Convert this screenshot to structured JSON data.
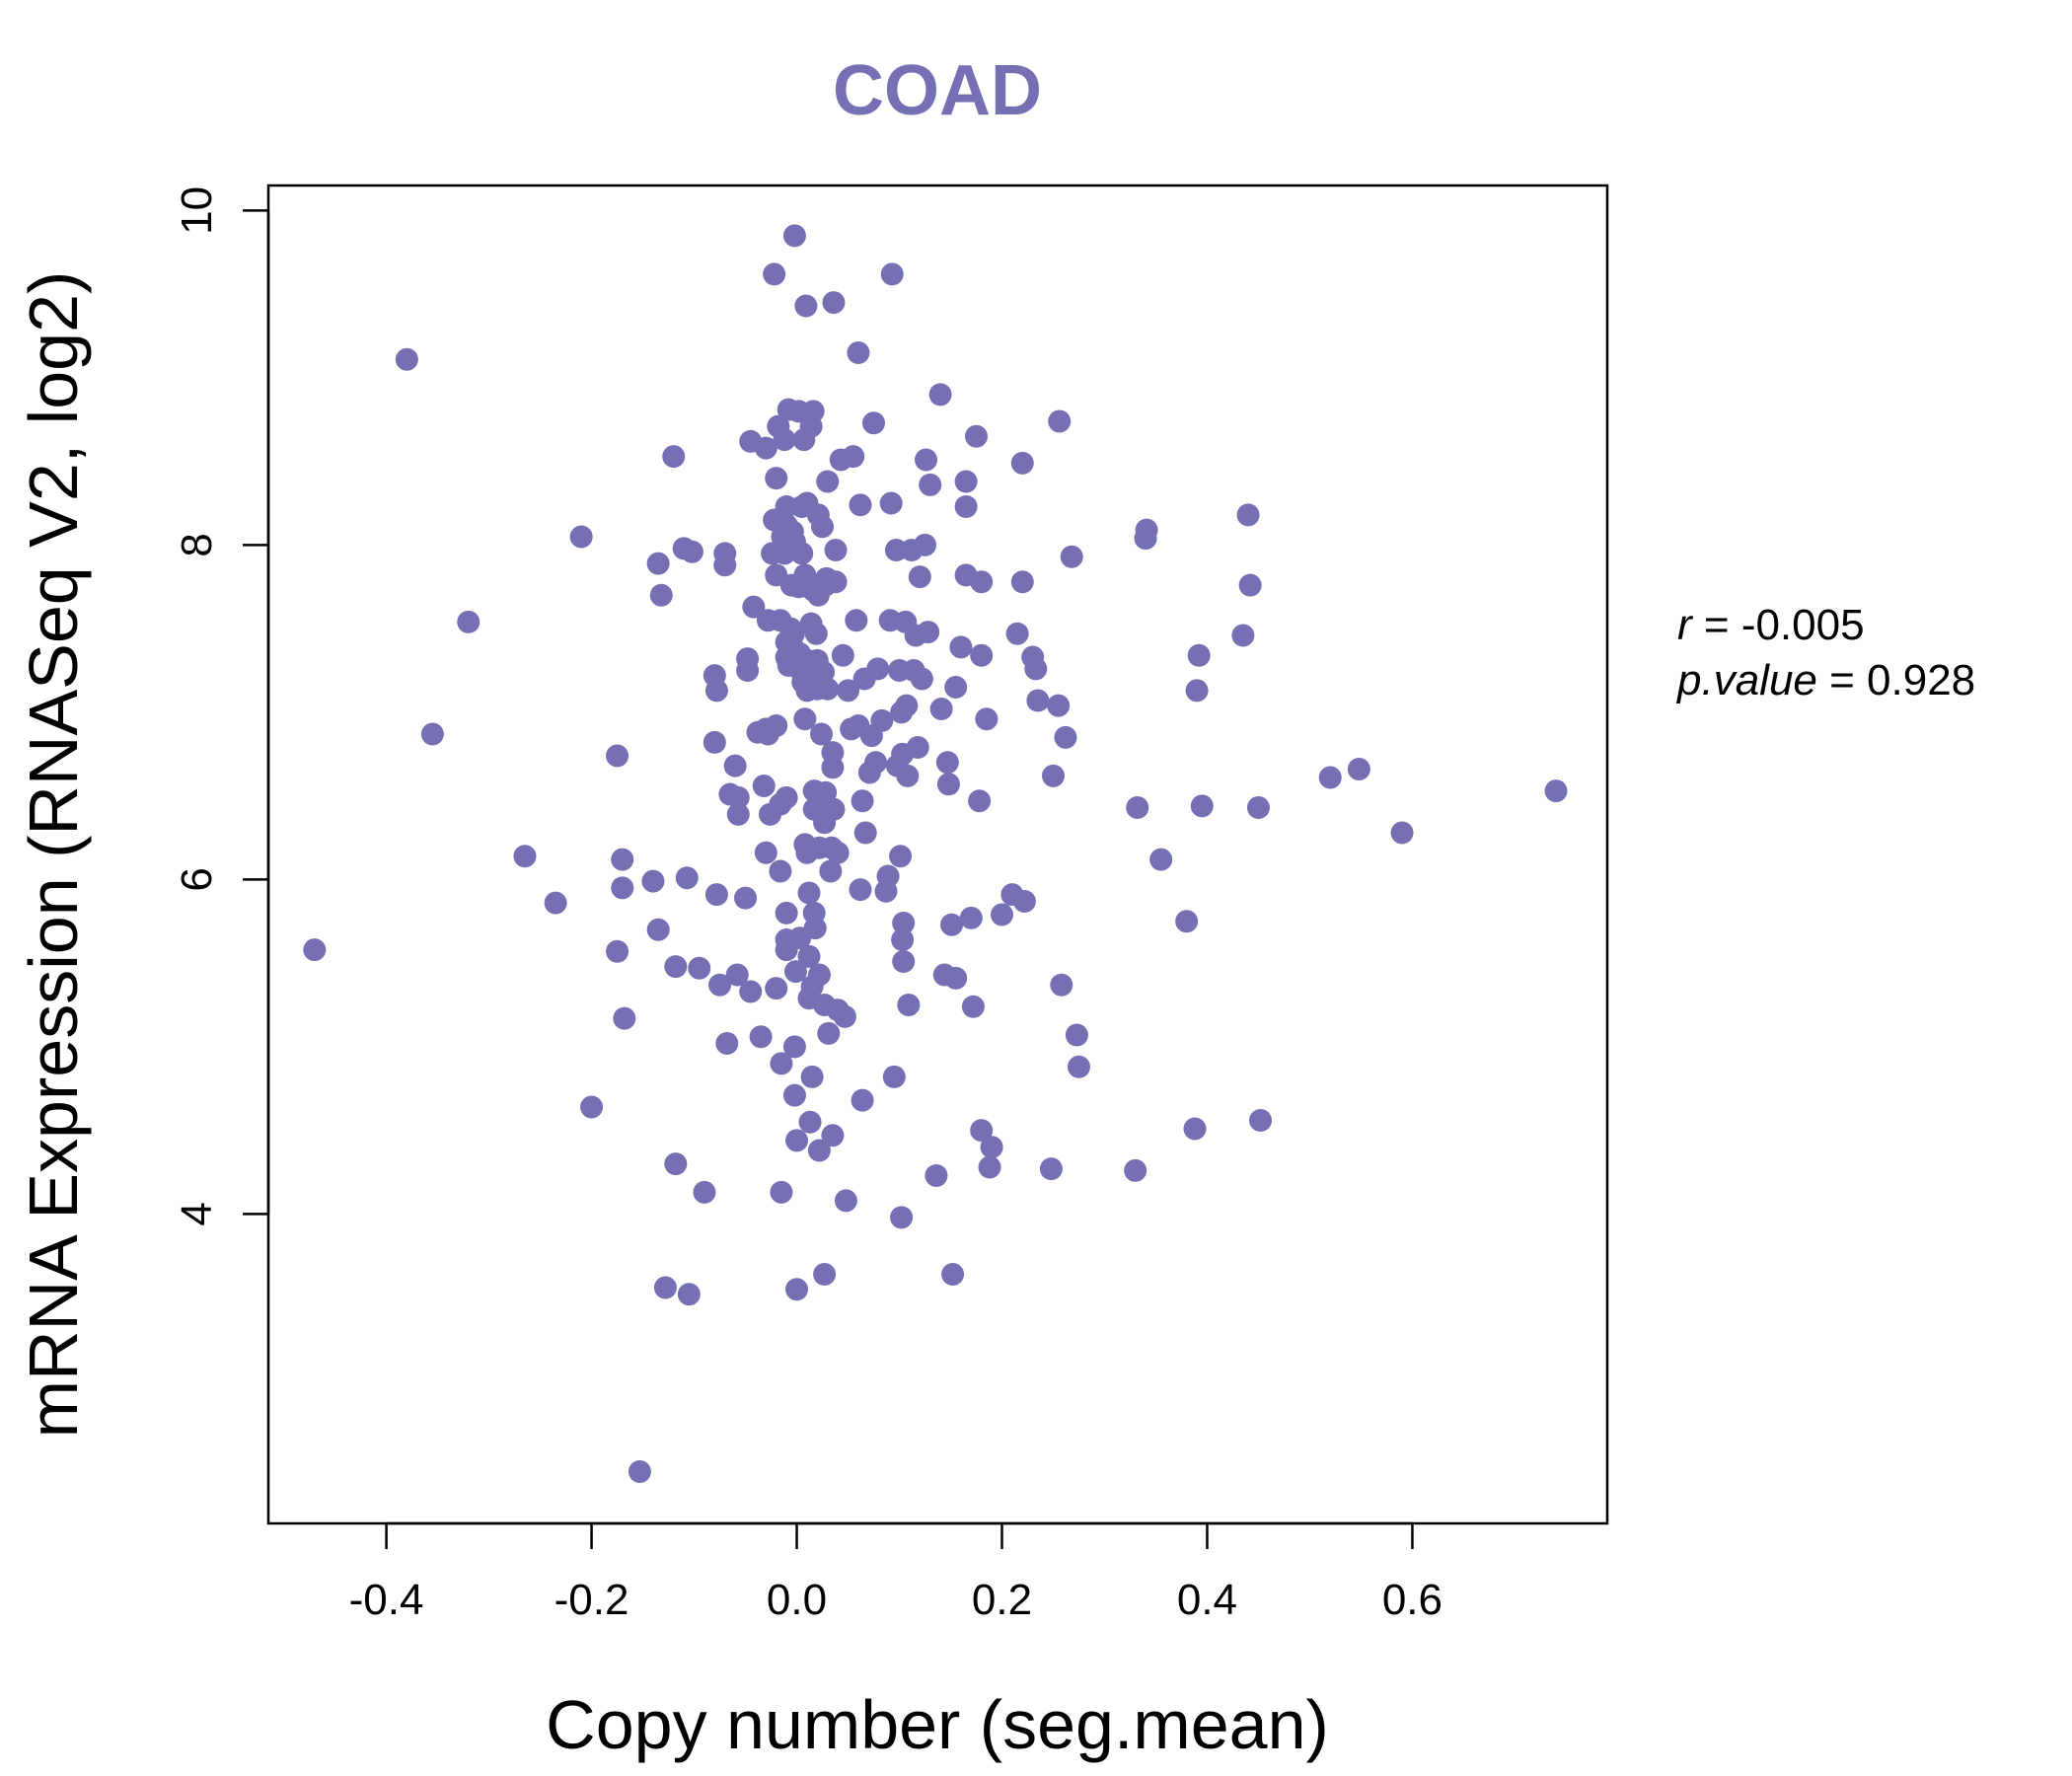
{
  "chart_data": {
    "type": "scatter",
    "title": "COAD",
    "xlabel": "Copy number (seg.mean)",
    "ylabel": "mRNA Expression (RNASeq V2, log2)",
    "xlim": [
      -0.515,
      0.79
    ],
    "ylim": [
      2.15,
      10.15
    ],
    "x_ticks": [
      -0.4,
      -0.2,
      0.0,
      0.2,
      0.4,
      0.6
    ],
    "x_tick_labels": [
      "-0.4",
      "-0.2",
      "0.0",
      "0.2",
      "0.4",
      "0.6"
    ],
    "y_ticks": [
      4,
      6,
      8,
      10
    ],
    "y_tick_labels": [
      "4",
      "6",
      "8",
      "10"
    ],
    "point_color": "#7570b3",
    "stats": {
      "r_label": "r",
      "r_value": "-0.005",
      "p_label": "p.value",
      "p_value": "0.928"
    },
    "points": [
      [
        -0.47,
        5.58
      ],
      [
        -0.38,
        9.11
      ],
      [
        -0.355,
        6.87
      ],
      [
        -0.32,
        7.54
      ],
      [
        -0.265,
        6.14
      ],
      [
        -0.235,
        5.86
      ],
      [
        -0.21,
        8.05
      ],
      [
        -0.2,
        4.64
      ],
      [
        -0.175,
        6.74
      ],
      [
        -0.175,
        5.57
      ],
      [
        -0.17,
        6.12
      ],
      [
        -0.17,
        5.95
      ],
      [
        -0.168,
        5.17
      ],
      [
        -0.153,
        2.46
      ],
      [
        -0.14,
        5.99
      ],
      [
        -0.135,
        5.7
      ],
      [
        -0.135,
        7.89
      ],
      [
        -0.132,
        7.7
      ],
      [
        -0.128,
        3.56
      ],
      [
        -0.12,
        8.53
      ],
      [
        -0.118,
        5.48
      ],
      [
        -0.118,
        4.3
      ],
      [
        -0.11,
        7.98
      ],
      [
        -0.107,
        6.01
      ],
      [
        -0.105,
        3.52
      ],
      [
        -0.102,
        7.96
      ],
      [
        -0.095,
        5.47
      ],
      [
        -0.09,
        4.13
      ],
      [
        -0.08,
        7.22
      ],
      [
        -0.08,
        6.82
      ],
      [
        -0.078,
        7.13
      ],
      [
        -0.078,
        5.91
      ],
      [
        -0.075,
        5.37
      ],
      [
        -0.07,
        7.88
      ],
      [
        -0.07,
        7.95
      ],
      [
        -0.068,
        5.02
      ],
      [
        -0.065,
        6.51
      ],
      [
        -0.06,
        6.68
      ],
      [
        -0.058,
        5.43
      ],
      [
        -0.057,
        6.49
      ],
      [
        -0.057,
        6.39
      ],
      [
        -0.05,
        5.89
      ],
      [
        -0.048,
        7.25
      ],
      [
        -0.048,
        7.32
      ],
      [
        -0.045,
        5.33
      ],
      [
        -0.045,
        8.62
      ],
      [
        -0.042,
        7.63
      ],
      [
        -0.038,
        6.88
      ],
      [
        -0.035,
        5.06
      ],
      [
        -0.032,
        6.56
      ],
      [
        -0.03,
        8.58
      ],
      [
        -0.03,
        6.9
      ],
      [
        -0.03,
        6.16
      ],
      [
        -0.028,
        6.87
      ],
      [
        -0.028,
        7.55
      ],
      [
        -0.026,
        6.39
      ],
      [
        -0.024,
        7.95
      ],
      [
        -0.022,
        9.62
      ],
      [
        -0.022,
        8.15
      ],
      [
        -0.02,
        8.4
      ],
      [
        -0.02,
        5.35
      ],
      [
        -0.02,
        7.82
      ],
      [
        -0.02,
        6.92
      ],
      [
        -0.018,
        8.71
      ],
      [
        -0.016,
        6.45
      ],
      [
        -0.016,
        7.55
      ],
      [
        -0.016,
        6.05
      ],
      [
        -0.015,
        4.9
      ],
      [
        -0.015,
        4.13
      ],
      [
        -0.014,
        8.05
      ],
      [
        -0.012,
        7.95
      ],
      [
        -0.012,
        8.63
      ],
      [
        -0.01,
        8.23
      ],
      [
        -0.01,
        8.12
      ],
      [
        -0.01,
        6.49
      ],
      [
        -0.01,
        7.42
      ],
      [
        -0.01,
        7.33
      ],
      [
        -0.01,
        5.8
      ],
      [
        -0.01,
        5.64
      ],
      [
        -0.01,
        5.58
      ],
      [
        -0.008,
        8.81
      ],
      [
        -0.008,
        7.28
      ],
      [
        -0.006,
        7.5
      ],
      [
        -0.005,
        7.76
      ],
      [
        -0.004,
        8.08
      ],
      [
        -0.003,
        7.47
      ],
      [
        -0.003,
        7.38
      ],
      [
        -0.002,
        8.02
      ],
      [
        -0.002,
        5.0
      ],
      [
        -0.002,
        4.71
      ],
      [
        -0.002,
        9.85
      ],
      [
        -0.001,
        5.45
      ],
      [
        0.0,
        4.44
      ],
      [
        0.0,
        3.55
      ],
      [
        0.0,
        7.3
      ],
      [
        0.002,
        8.8
      ],
      [
        0.002,
        7.75
      ],
      [
        0.003,
        7.35
      ],
      [
        0.003,
        5.65
      ],
      [
        0.004,
        7.25
      ],
      [
        0.005,
        8.23
      ],
      [
        0.005,
        7.95
      ],
      [
        0.006,
        7.18
      ],
      [
        0.007,
        8.63
      ],
      [
        0.008,
        7.82
      ],
      [
        0.008,
        6.96
      ],
      [
        0.008,
        6.21
      ],
      [
        0.009,
        9.43
      ],
      [
        0.01,
        8.25
      ],
      [
        0.01,
        7.31
      ],
      [
        0.01,
        7.2
      ],
      [
        0.01,
        7.13
      ],
      [
        0.01,
        6.16
      ],
      [
        0.012,
        5.92
      ],
      [
        0.012,
        5.54
      ],
      [
        0.012,
        5.29
      ],
      [
        0.013,
        4.55
      ],
      [
        0.014,
        7.53
      ],
      [
        0.014,
        8.71
      ],
      [
        0.015,
        5.36
      ],
      [
        0.015,
        4.82
      ],
      [
        0.016,
        8.8
      ],
      [
        0.016,
        7.73
      ],
      [
        0.017,
        7.25
      ],
      [
        0.017,
        6.53
      ],
      [
        0.017,
        6.42
      ],
      [
        0.017,
        5.8
      ],
      [
        0.018,
        5.71
      ],
      [
        0.019,
        7.47
      ],
      [
        0.02,
        7.31
      ],
      [
        0.02,
        7.14
      ],
      [
        0.021,
        8.18
      ],
      [
        0.021,
        7.7
      ],
      [
        0.022,
        6.19
      ],
      [
        0.022,
        5.43
      ],
      [
        0.022,
        4.38
      ],
      [
        0.024,
        6.87
      ],
      [
        0.025,
        8.11
      ],
      [
        0.026,
        7.24
      ],
      [
        0.027,
        6.34
      ],
      [
        0.027,
        5.25
      ],
      [
        0.027,
        3.64
      ],
      [
        0.028,
        7.76
      ],
      [
        0.028,
        6.52
      ],
      [
        0.029,
        7.8
      ],
      [
        0.03,
        8.38
      ],
      [
        0.03,
        7.14
      ],
      [
        0.031,
        5.08
      ],
      [
        0.033,
        6.05
      ],
      [
        0.034,
        6.19
      ],
      [
        0.035,
        6.76
      ],
      [
        0.035,
        6.67
      ],
      [
        0.035,
        4.47
      ],
      [
        0.036,
        6.42
      ],
      [
        0.036,
        9.45
      ],
      [
        0.038,
        7.97
      ],
      [
        0.038,
        7.78
      ],
      [
        0.04,
        6.16
      ],
      [
        0.04,
        5.22
      ],
      [
        0.043,
        8.51
      ],
      [
        0.045,
        7.34
      ],
      [
        0.047,
        5.18
      ],
      [
        0.048,
        4.08
      ],
      [
        0.05,
        7.13
      ],
      [
        0.053,
        6.9
      ],
      [
        0.055,
        8.53
      ],
      [
        0.058,
        7.55
      ],
      [
        0.06,
        9.15
      ],
      [
        0.06,
        6.92
      ],
      [
        0.062,
        8.24
      ],
      [
        0.062,
        5.94
      ],
      [
        0.064,
        6.47
      ],
      [
        0.064,
        4.68
      ],
      [
        0.066,
        7.2
      ],
      [
        0.067,
        6.28
      ],
      [
        0.071,
        6.64
      ],
      [
        0.073,
        6.86
      ],
      [
        0.075,
        8.73
      ],
      [
        0.077,
        6.7
      ],
      [
        0.079,
        7.26
      ],
      [
        0.083,
        6.95
      ],
      [
        0.087,
        5.93
      ],
      [
        0.089,
        6.02
      ],
      [
        0.091,
        7.55
      ],
      [
        0.092,
        8.25
      ],
      [
        0.093,
        9.62
      ],
      [
        0.095,
        4.82
      ],
      [
        0.097,
        7.97
      ],
      [
        0.098,
        6.68
      ],
      [
        0.1,
        7.25
      ],
      [
        0.101,
        6.14
      ],
      [
        0.102,
        7.0
      ],
      [
        0.102,
        3.98
      ],
      [
        0.103,
        6.75
      ],
      [
        0.103,
        5.64
      ],
      [
        0.104,
        5.74
      ],
      [
        0.104,
        5.51
      ],
      [
        0.106,
        7.54
      ],
      [
        0.107,
        7.04
      ],
      [
        0.108,
        6.62
      ],
      [
        0.109,
        5.25
      ],
      [
        0.112,
        7.97
      ],
      [
        0.114,
        7.25
      ],
      [
        0.116,
        7.46
      ],
      [
        0.118,
        6.79
      ],
      [
        0.12,
        7.81
      ],
      [
        0.122,
        7.2
      ],
      [
        0.125,
        8.0
      ],
      [
        0.126,
        8.51
      ],
      [
        0.128,
        7.48
      ],
      [
        0.13,
        8.36
      ],
      [
        0.136,
        4.23
      ],
      [
        0.14,
        8.9
      ],
      [
        0.141,
        7.02
      ],
      [
        0.144,
        5.43
      ],
      [
        0.147,
        6.7
      ],
      [
        0.148,
        6.57
      ],
      [
        0.151,
        5.73
      ],
      [
        0.152,
        3.64
      ],
      [
        0.155,
        7.15
      ],
      [
        0.155,
        5.41
      ],
      [
        0.16,
        7.39
      ],
      [
        0.165,
        8.23
      ],
      [
        0.165,
        8.38
      ],
      [
        0.165,
        7.82
      ],
      [
        0.17,
        5.77
      ],
      [
        0.172,
        5.24
      ],
      [
        0.175,
        8.65
      ],
      [
        0.178,
        6.47
      ],
      [
        0.18,
        7.34
      ],
      [
        0.18,
        7.78
      ],
      [
        0.18,
        4.5
      ],
      [
        0.185,
        6.96
      ],
      [
        0.188,
        4.28
      ],
      [
        0.19,
        4.4
      ],
      [
        0.2,
        5.79
      ],
      [
        0.21,
        5.91
      ],
      [
        0.215,
        7.47
      ],
      [
        0.22,
        8.49
      ],
      [
        0.22,
        7.78
      ],
      [
        0.222,
        5.87
      ],
      [
        0.23,
        7.33
      ],
      [
        0.233,
        7.26
      ],
      [
        0.235,
        7.07
      ],
      [
        0.248,
        4.27
      ],
      [
        0.25,
        6.62
      ],
      [
        0.255,
        7.04
      ],
      [
        0.256,
        8.74
      ],
      [
        0.258,
        5.37
      ],
      [
        0.262,
        6.85
      ],
      [
        0.268,
        7.93
      ],
      [
        0.273,
        5.07
      ],
      [
        0.275,
        4.88
      ],
      [
        0.33,
        4.26
      ],
      [
        0.332,
        6.43
      ],
      [
        0.34,
        8.04
      ],
      [
        0.341,
        8.09
      ],
      [
        0.355,
        6.12
      ],
      [
        0.38,
        5.75
      ],
      [
        0.388,
        4.51
      ],
      [
        0.39,
        7.13
      ],
      [
        0.392,
        7.34
      ],
      [
        0.395,
        6.44
      ],
      [
        0.435,
        7.46
      ],
      [
        0.44,
        8.18
      ],
      [
        0.442,
        7.76
      ],
      [
        0.45,
        6.43
      ],
      [
        0.452,
        4.56
      ],
      [
        0.52,
        6.61
      ],
      [
        0.548,
        6.66
      ],
      [
        0.59,
        6.28
      ],
      [
        0.74,
        6.53
      ]
    ]
  }
}
